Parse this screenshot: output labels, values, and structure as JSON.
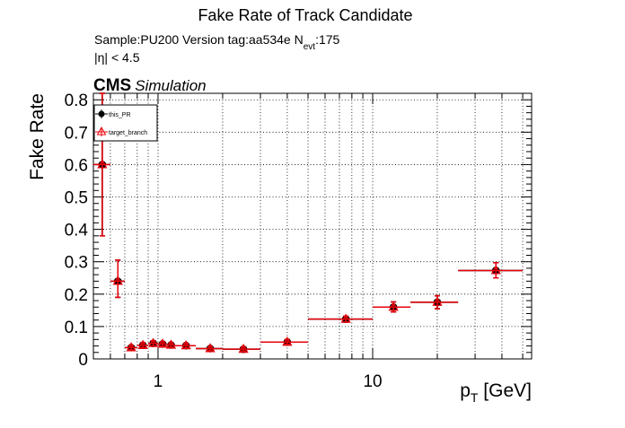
{
  "chart_data": {
    "type": "scatter",
    "title": "Fake Rate of Track Candidate",
    "subtitle": {
      "prefix": "Sample:PU200   Version tag:aa534e  N",
      "subscript": "evt",
      "suffix": ":175"
    },
    "eta_cut": "|η| < 4.5",
    "cms_label": "CMS",
    "cms_extra": "Simulation",
    "xlabel": {
      "main": "p",
      "sub": "T",
      "rest": " [GeV]"
    },
    "ylabel": "Fake Rate",
    "x_scale": "log",
    "xlim": [
      0.5,
      55
    ],
    "ylim": [
      0,
      0.82
    ],
    "grid": true,
    "legend_position": "top-left",
    "x_tick_labels": [
      {
        "value": 1,
        "label": "1"
      },
      {
        "value": 10,
        "label": "10"
      }
    ],
    "y_tick_labels": [
      {
        "value": 0,
        "label": "0"
      },
      {
        "value": 0.1,
        "label": "0.1"
      },
      {
        "value": 0.2,
        "label": "0.2"
      },
      {
        "value": 0.3,
        "label": "0.3"
      },
      {
        "value": 0.4,
        "label": "0.4"
      },
      {
        "value": 0.5,
        "label": "0.5"
      },
      {
        "value": 0.6,
        "label": "0.6"
      },
      {
        "value": 0.7,
        "label": "0.7"
      },
      {
        "value": 0.8,
        "label": "0.8"
      }
    ],
    "series": [
      {
        "name": "this_PR",
        "color": "#000000",
        "marker": "circle",
        "points": [
          {
            "x": 0.55,
            "xlo": 0.5,
            "xhi": 0.6,
            "y": 0.6,
            "ylo": 0.38,
            "yhi": 0.82
          },
          {
            "x": 0.65,
            "xlo": 0.6,
            "xhi": 0.7,
            "y": 0.24,
            "ylo": 0.19,
            "yhi": 0.305
          },
          {
            "x": 0.75,
            "xlo": 0.7,
            "xhi": 0.8,
            "y": 0.035,
            "ylo": 0.028,
            "yhi": 0.042
          },
          {
            "x": 0.85,
            "xlo": 0.8,
            "xhi": 0.9,
            "y": 0.042,
            "ylo": 0.035,
            "yhi": 0.05
          },
          {
            "x": 0.95,
            "xlo": 0.9,
            "xhi": 1.0,
            "y": 0.048,
            "ylo": 0.04,
            "yhi": 0.056
          },
          {
            "x": 1.05,
            "xlo": 1.0,
            "xhi": 1.1,
            "y": 0.046,
            "ylo": 0.039,
            "yhi": 0.053
          },
          {
            "x": 1.15,
            "xlo": 1.1,
            "xhi": 1.2,
            "y": 0.043,
            "ylo": 0.036,
            "yhi": 0.05
          },
          {
            "x": 1.35,
            "xlo": 1.2,
            "xhi": 1.5,
            "y": 0.041,
            "ylo": 0.034,
            "yhi": 0.048
          },
          {
            "x": 1.75,
            "xlo": 1.5,
            "xhi": 2.0,
            "y": 0.032,
            "ylo": 0.026,
            "yhi": 0.038
          },
          {
            "x": 2.5,
            "xlo": 2.0,
            "xhi": 3.0,
            "y": 0.03,
            "ylo": 0.024,
            "yhi": 0.037
          },
          {
            "x": 4.0,
            "xlo": 3.0,
            "xhi": 5.0,
            "y": 0.052,
            "ylo": 0.045,
            "yhi": 0.06
          },
          {
            "x": 7.5,
            "xlo": 5.0,
            "xhi": 10.0,
            "y": 0.123,
            "ylo": 0.114,
            "yhi": 0.132
          },
          {
            "x": 12.5,
            "xlo": 10.0,
            "xhi": 15.0,
            "y": 0.16,
            "ylo": 0.145,
            "yhi": 0.176
          },
          {
            "x": 20.0,
            "xlo": 15.0,
            "xhi": 25.0,
            "y": 0.175,
            "ylo": 0.155,
            "yhi": 0.195
          },
          {
            "x": 37.5,
            "xlo": 25.0,
            "xhi": 50.0,
            "y": 0.273,
            "ylo": 0.25,
            "yhi": 0.297
          }
        ]
      },
      {
        "name": "target_branch",
        "color": "#e8000b",
        "marker": "triangle-open",
        "points": [
          {
            "x": 0.55,
            "xlo": 0.5,
            "xhi": 0.6,
            "y": 0.6,
            "ylo": 0.38,
            "yhi": 0.82
          },
          {
            "x": 0.65,
            "xlo": 0.6,
            "xhi": 0.7,
            "y": 0.24,
            "ylo": 0.19,
            "yhi": 0.305
          },
          {
            "x": 0.75,
            "xlo": 0.7,
            "xhi": 0.8,
            "y": 0.035,
            "ylo": 0.028,
            "yhi": 0.042
          },
          {
            "x": 0.85,
            "xlo": 0.8,
            "xhi": 0.9,
            "y": 0.042,
            "ylo": 0.035,
            "yhi": 0.05
          },
          {
            "x": 0.95,
            "xlo": 0.9,
            "xhi": 1.0,
            "y": 0.048,
            "ylo": 0.04,
            "yhi": 0.056
          },
          {
            "x": 1.05,
            "xlo": 1.0,
            "xhi": 1.1,
            "y": 0.046,
            "ylo": 0.039,
            "yhi": 0.053
          },
          {
            "x": 1.15,
            "xlo": 1.1,
            "xhi": 1.2,
            "y": 0.043,
            "ylo": 0.036,
            "yhi": 0.05
          },
          {
            "x": 1.35,
            "xlo": 1.2,
            "xhi": 1.5,
            "y": 0.041,
            "ylo": 0.034,
            "yhi": 0.048
          },
          {
            "x": 1.75,
            "xlo": 1.5,
            "xhi": 2.0,
            "y": 0.032,
            "ylo": 0.026,
            "yhi": 0.038
          },
          {
            "x": 2.5,
            "xlo": 2.0,
            "xhi": 3.0,
            "y": 0.03,
            "ylo": 0.024,
            "yhi": 0.037
          },
          {
            "x": 4.0,
            "xlo": 3.0,
            "xhi": 5.0,
            "y": 0.052,
            "ylo": 0.045,
            "yhi": 0.06
          },
          {
            "x": 7.5,
            "xlo": 5.0,
            "xhi": 10.0,
            "y": 0.123,
            "ylo": 0.114,
            "yhi": 0.132
          },
          {
            "x": 12.5,
            "xlo": 10.0,
            "xhi": 15.0,
            "y": 0.16,
            "ylo": 0.145,
            "yhi": 0.176
          },
          {
            "x": 20.0,
            "xlo": 15.0,
            "xhi": 25.0,
            "y": 0.175,
            "ylo": 0.155,
            "yhi": 0.195
          },
          {
            "x": 37.5,
            "xlo": 25.0,
            "xhi": 50.0,
            "y": 0.273,
            "ylo": 0.25,
            "yhi": 0.297
          }
        ]
      }
    ]
  }
}
